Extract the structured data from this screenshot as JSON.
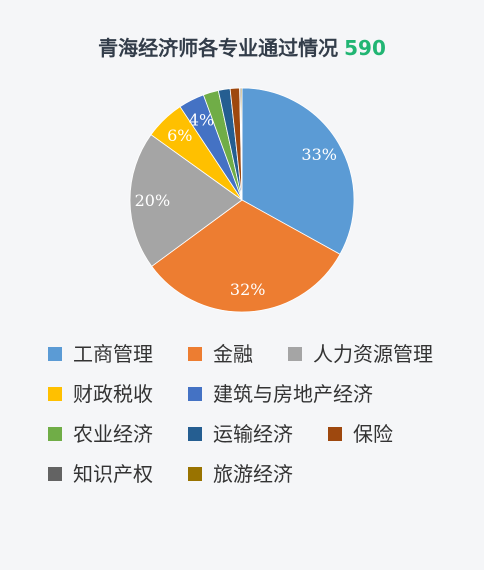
{
  "colors": {
    "background": "#f5f6f8",
    "title": "#333d4a",
    "total": "#21b573",
    "legend_text": "#333333",
    "data_label": "#ffffff"
  },
  "chart_data": {
    "type": "pie",
    "title": "青海经济师各专业通过情况",
    "total": "590",
    "categories": [
      "工商管理",
      "金融",
      "人力资源管理",
      "财政税收",
      "建筑与房地产经济",
      "农业经济",
      "运输经济",
      "保险",
      "知识产权",
      "旅游经济"
    ],
    "values": [
      195,
      188,
      118,
      34,
      22,
      13,
      10,
      8,
      1,
      1
    ],
    "data_labels": [
      "33%",
      "32%",
      "20%",
      "6%",
      "4%",
      null,
      null,
      null,
      null,
      null
    ],
    "colors": [
      "#5b9bd5",
      "#ed7d31",
      "#a5a5a5",
      "#ffc000",
      "#4472c4",
      "#70ad47",
      "#255e91",
      "#9e480e",
      "#636363",
      "#997300"
    ],
    "legend": "bottom"
  }
}
